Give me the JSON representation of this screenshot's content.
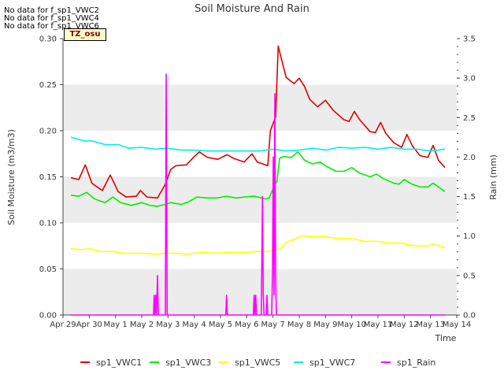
{
  "no_data_notes": [
    "No data for f_sp1_VWC2",
    "No data for f_sp1_VWC4",
    "No data for f_sp1_VWC6"
  ],
  "tz_label": "TZ_osu",
  "chart_data": {
    "type": "line",
    "title": "Soil Moisture And Rain",
    "xlabel": "Time",
    "ylabel": "Soil Moisture (m3/m3)",
    "y2label": "Rain (mm)",
    "xlim": [
      0,
      15
    ],
    "ylim": [
      0,
      0.3
    ],
    "y2lim": [
      0,
      3.5
    ],
    "x_ticks": [
      0,
      1,
      2,
      3,
      4,
      5,
      6,
      7,
      8,
      9,
      10,
      11,
      12,
      13,
      14,
      15
    ],
    "x_tick_labels": [
      "Apr 29",
      "Apr 30",
      "May 1",
      "May 2",
      "May 3",
      "May 4",
      "May 5",
      "May 6",
      "May 7",
      "May 8",
      "May 9",
      "May 10",
      "May 11",
      "May 12",
      "May 13",
      "May 14"
    ],
    "y_ticks": [
      0.0,
      0.05,
      0.1,
      0.15,
      0.2,
      0.25,
      0.3
    ],
    "y_tick_labels": [
      "0.00",
      "0.05",
      "0.10",
      "0.15",
      "0.20",
      "0.25",
      "0.30"
    ],
    "y2_ticks": [
      0.0,
      0.5,
      1.0,
      1.5,
      2.0,
      2.5,
      3.0,
      3.5
    ],
    "y2_tick_labels": [
      "0.0",
      "0.5",
      "1.0",
      "1.5",
      "2.0",
      "2.5",
      "3.0",
      "3.5"
    ],
    "background_bands": true,
    "legend_position": "bottom",
    "series": [
      {
        "name": "sp1_VWC1",
        "color": "#dd0000",
        "axis": "left",
        "points": [
          [
            0.3,
            0.149
          ],
          [
            0.6,
            0.147
          ],
          [
            0.85,
            0.163
          ],
          [
            1.1,
            0.143
          ],
          [
            1.5,
            0.135
          ],
          [
            1.8,
            0.152
          ],
          [
            2.1,
            0.134
          ],
          [
            2.4,
            0.128
          ],
          [
            2.8,
            0.129
          ],
          [
            2.95,
            0.135
          ],
          [
            3.2,
            0.128
          ],
          [
            3.6,
            0.127
          ],
          [
            3.9,
            0.142
          ],
          [
            4.1,
            0.158
          ],
          [
            4.3,
            0.162
          ],
          [
            4.7,
            0.163
          ],
          [
            5.0,
            0.172
          ],
          [
            5.2,
            0.177
          ],
          [
            5.5,
            0.171
          ],
          [
            5.9,
            0.169
          ],
          [
            6.25,
            0.174
          ],
          [
            6.5,
            0.17
          ],
          [
            6.9,
            0.166
          ],
          [
            7.2,
            0.175
          ],
          [
            7.4,
            0.166
          ],
          [
            7.7,
            0.163
          ],
          [
            7.8,
            0.162
          ],
          [
            7.9,
            0.2
          ],
          [
            8.1,
            0.215
          ],
          [
            8.2,
            0.292
          ],
          [
            8.3,
            0.28
          ],
          [
            8.5,
            0.258
          ],
          [
            8.8,
            0.251
          ],
          [
            9.0,
            0.257
          ],
          [
            9.2,
            0.248
          ],
          [
            9.4,
            0.234
          ],
          [
            9.7,
            0.226
          ],
          [
            10.0,
            0.233
          ],
          [
            10.3,
            0.222
          ],
          [
            10.7,
            0.212
          ],
          [
            10.9,
            0.21
          ],
          [
            11.1,
            0.221
          ],
          [
            11.3,
            0.212
          ],
          [
            11.7,
            0.199
          ],
          [
            11.9,
            0.198
          ],
          [
            12.1,
            0.209
          ],
          [
            12.3,
            0.197
          ],
          [
            12.6,
            0.187
          ],
          [
            12.9,
            0.182
          ],
          [
            13.1,
            0.196
          ],
          [
            13.3,
            0.184
          ],
          [
            13.6,
            0.173
          ],
          [
            13.9,
            0.171
          ],
          [
            14.1,
            0.184
          ],
          [
            14.3,
            0.168
          ],
          [
            14.55,
            0.16
          ]
        ]
      },
      {
        "name": "sp1_VWC3",
        "color": "#00ee00",
        "axis": "left",
        "points": [
          [
            0.3,
            0.13
          ],
          [
            0.6,
            0.129
          ],
          [
            0.9,
            0.133
          ],
          [
            1.2,
            0.126
          ],
          [
            1.6,
            0.122
          ],
          [
            1.9,
            0.128
          ],
          [
            2.2,
            0.122
          ],
          [
            2.6,
            0.119
          ],
          [
            3.0,
            0.122
          ],
          [
            3.3,
            0.119
          ],
          [
            3.6,
            0.118
          ],
          [
            3.9,
            0.12
          ],
          [
            4.1,
            0.122
          ],
          [
            4.5,
            0.12
          ],
          [
            4.8,
            0.123
          ],
          [
            5.1,
            0.128
          ],
          [
            5.5,
            0.127
          ],
          [
            5.9,
            0.127
          ],
          [
            6.2,
            0.129
          ],
          [
            6.6,
            0.127
          ],
          [
            6.9,
            0.128
          ],
          [
            7.3,
            0.129
          ],
          [
            7.7,
            0.126
          ],
          [
            7.85,
            0.127
          ],
          [
            8.05,
            0.14
          ],
          [
            8.15,
            0.145
          ],
          [
            8.25,
            0.17
          ],
          [
            8.4,
            0.172
          ],
          [
            8.7,
            0.171
          ],
          [
            8.95,
            0.177
          ],
          [
            9.2,
            0.168
          ],
          [
            9.5,
            0.164
          ],
          [
            9.8,
            0.166
          ],
          [
            10.0,
            0.162
          ],
          [
            10.4,
            0.156
          ],
          [
            10.7,
            0.156
          ],
          [
            11.0,
            0.16
          ],
          [
            11.3,
            0.154
          ],
          [
            11.7,
            0.15
          ],
          [
            11.95,
            0.153
          ],
          [
            12.2,
            0.148
          ],
          [
            12.6,
            0.143
          ],
          [
            12.8,
            0.142
          ],
          [
            13.0,
            0.147
          ],
          [
            13.3,
            0.142
          ],
          [
            13.6,
            0.139
          ],
          [
            13.9,
            0.139
          ],
          [
            14.1,
            0.143
          ],
          [
            14.3,
            0.139
          ],
          [
            14.55,
            0.134
          ]
        ]
      },
      {
        "name": "sp1_VWC5",
        "color": "#ffff00",
        "axis": "left",
        "points": [
          [
            0.3,
            0.072
          ],
          [
            0.7,
            0.071
          ],
          [
            1.0,
            0.072
          ],
          [
            1.4,
            0.069
          ],
          [
            1.9,
            0.069
          ],
          [
            2.3,
            0.067
          ],
          [
            2.7,
            0.067
          ],
          [
            3.0,
            0.067
          ],
          [
            3.5,
            0.066
          ],
          [
            4.0,
            0.067
          ],
          [
            4.3,
            0.067
          ],
          [
            4.7,
            0.066
          ],
          [
            5.0,
            0.067
          ],
          [
            5.3,
            0.068
          ],
          [
            5.8,
            0.067
          ],
          [
            6.2,
            0.068
          ],
          [
            6.7,
            0.068
          ],
          [
            7.0,
            0.068
          ],
          [
            7.4,
            0.069
          ],
          [
            7.8,
            0.069
          ],
          [
            8.1,
            0.071
          ],
          [
            8.3,
            0.072
          ],
          [
            8.5,
            0.079
          ],
          [
            8.8,
            0.082
          ],
          [
            9.1,
            0.086
          ],
          [
            9.5,
            0.085
          ],
          [
            10.0,
            0.085
          ],
          [
            10.5,
            0.083
          ],
          [
            11.0,
            0.083
          ],
          [
            11.5,
            0.08
          ],
          [
            12.0,
            0.08
          ],
          [
            12.4,
            0.078
          ],
          [
            12.9,
            0.078
          ],
          [
            13.4,
            0.075
          ],
          [
            13.9,
            0.075
          ],
          [
            14.1,
            0.077
          ],
          [
            14.55,
            0.073
          ]
        ]
      },
      {
        "name": "sp1_VWC7",
        "color": "#00eeee",
        "axis": "left",
        "points": [
          [
            0.3,
            0.193
          ],
          [
            0.8,
            0.189
          ],
          [
            1.1,
            0.189
          ],
          [
            1.6,
            0.185
          ],
          [
            2.1,
            0.185
          ],
          [
            2.5,
            0.181
          ],
          [
            3.0,
            0.182
          ],
          [
            3.5,
            0.18
          ],
          [
            4.0,
            0.181
          ],
          [
            4.5,
            0.179
          ],
          [
            5.0,
            0.179
          ],
          [
            5.5,
            0.178
          ],
          [
            6.0,
            0.178
          ],
          [
            6.5,
            0.178
          ],
          [
            7.0,
            0.178
          ],
          [
            7.5,
            0.178
          ],
          [
            8.0,
            0.18
          ],
          [
            8.5,
            0.178
          ],
          [
            9.0,
            0.179
          ],
          [
            9.5,
            0.181
          ],
          [
            10.0,
            0.179
          ],
          [
            10.5,
            0.182
          ],
          [
            11.0,
            0.181
          ],
          [
            11.5,
            0.182
          ],
          [
            12.0,
            0.18
          ],
          [
            12.5,
            0.182
          ],
          [
            13.0,
            0.18
          ],
          [
            13.5,
            0.18
          ],
          [
            14.0,
            0.178
          ],
          [
            14.55,
            0.18
          ]
        ]
      },
      {
        "name": "sp1_Rain",
        "color": "#ff00ff",
        "axis": "right",
        "points": [
          [
            0.3,
            0
          ],
          [
            3.45,
            0
          ],
          [
            3.47,
            0.25
          ],
          [
            3.5,
            0
          ],
          [
            3.53,
            0.25
          ],
          [
            3.56,
            0
          ],
          [
            3.6,
            0.5
          ],
          [
            3.63,
            0
          ],
          [
            3.9,
            0
          ],
          [
            3.93,
            3.05
          ],
          [
            3.97,
            0
          ],
          [
            6.2,
            0
          ],
          [
            6.23,
            0.25
          ],
          [
            6.26,
            0
          ],
          [
            7.25,
            0
          ],
          [
            7.28,
            0.25
          ],
          [
            7.31,
            0
          ],
          [
            7.34,
            0.25
          ],
          [
            7.37,
            0
          ],
          [
            7.55,
            0
          ],
          [
            7.57,
            0.5
          ],
          [
            7.6,
            1.5
          ],
          [
            7.63,
            0.25
          ],
          [
            7.66,
            0
          ],
          [
            7.74,
            0
          ],
          [
            7.77,
            0.25
          ],
          [
            7.8,
            0
          ],
          [
            7.95,
            0
          ],
          [
            7.98,
            0.5
          ],
          [
            8.01,
            2.0
          ],
          [
            8.04,
            0.25
          ],
          [
            8.07,
            2.8
          ],
          [
            8.1,
            0.5
          ],
          [
            8.13,
            0
          ],
          [
            14.55,
            0
          ]
        ]
      }
    ]
  }
}
